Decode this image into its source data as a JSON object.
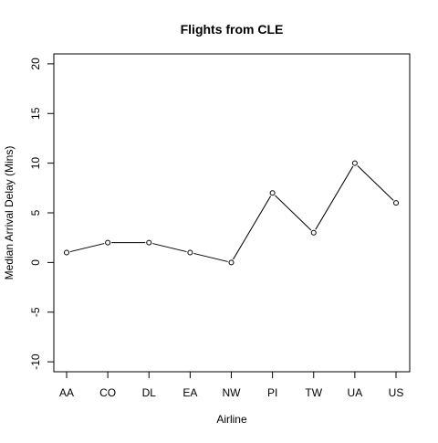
{
  "chart_data": {
    "type": "line",
    "title": "Flights from CLE",
    "xlabel": "Airline",
    "ylabel": "Median Arrival Delay (Mins)",
    "categories": [
      "AA",
      "CO",
      "DL",
      "EA",
      "NW",
      "PI",
      "TW",
      "UA",
      "US"
    ],
    "series": [
      {
        "values": [
          1,
          2,
          2,
          1,
          0,
          7,
          3,
          10,
          6
        ]
      }
    ],
    "ylim": [
      -11,
      21
    ],
    "yticks": [
      -10,
      -5,
      0,
      5,
      10,
      15,
      20
    ],
    "ytick_labels": [
      "-10",
      "-5",
      "0",
      "5",
      "10",
      "15",
      "20"
    ],
    "grid": false,
    "markers": "open-circle",
    "line_color": "#000000"
  }
}
